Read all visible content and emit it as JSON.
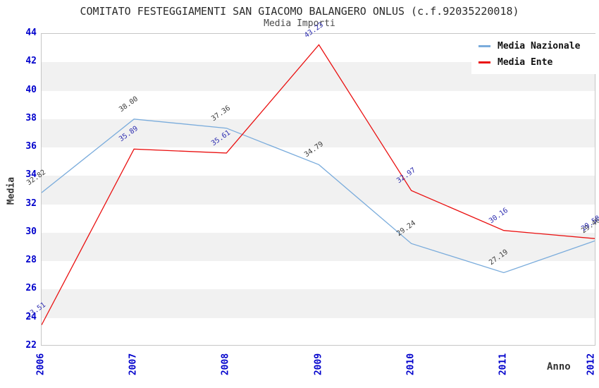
{
  "chart_data": {
    "type": "line",
    "title": "COMITATO FESTEGGIAMENTI SAN GIACOMO BALANGERO ONLUS (c.f.92035220018)",
    "subtitle": "Media Importi",
    "xlabel": "Anno",
    "ylabel": "Media",
    "x": [
      2006,
      2007,
      2008,
      2009,
      2010,
      2011,
      2012
    ],
    "series": [
      {
        "name": "Media Nazionale",
        "color": "#7AACDC",
        "label_color": "#3c3c3c",
        "values": [
          32.82,
          38.0,
          37.36,
          34.79,
          29.24,
          27.19,
          29.46
        ]
      },
      {
        "name": "Media Ente",
        "color": "#EA1111",
        "label_color": "#2d2db0",
        "values": [
          23.51,
          35.89,
          35.61,
          43.23,
          32.97,
          30.16,
          29.58
        ]
      }
    ],
    "ylim": [
      22,
      44
    ],
    "ytick_step": 2,
    "yticks": [
      44,
      42,
      40,
      38,
      36,
      34,
      32,
      30,
      28,
      26,
      24,
      22
    ],
    "grid": "alternating-horizontal-bands",
    "band_colors": [
      "#ffffff",
      "#f1f1f1"
    ],
    "axis_tick_color": "#0000cc",
    "legend_position": "top-right"
  }
}
